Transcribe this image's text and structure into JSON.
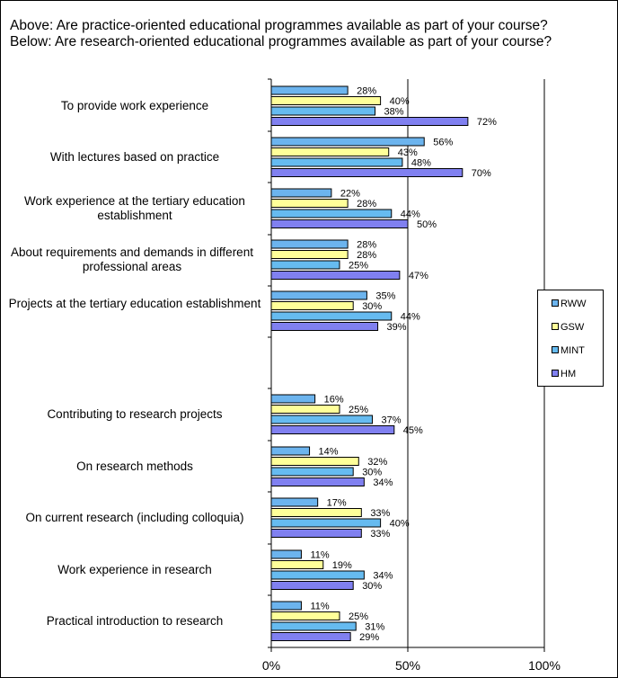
{
  "titles": {
    "above": "Above: Are practice-oriented educational programmes available as part of your course?",
    "below": "Below: Are research-oriented educational programmes available as part of your course?"
  },
  "legend": {
    "position": "right",
    "items": [
      {
        "name": "RWW",
        "color": "#6CB4EE"
      },
      {
        "name": "GSW",
        "color": "#FFFF99"
      },
      {
        "name": "MINT",
        "color": "#66BBF0"
      },
      {
        "name": "HM",
        "color": "#8080F0"
      }
    ]
  },
  "chart_data": {
    "type": "bar",
    "orientation": "horizontal",
    "xlim": [
      0,
      100
    ],
    "xticks": [
      "0%",
      "50%",
      "100%"
    ],
    "value_suffix": "%",
    "categories": [
      "To provide work experience",
      "With lectures based on practice",
      "Work experience at the tertiary education establishment",
      "About requirements and demands in different professional areas",
      "Projects at the tertiary education establishment",
      "Contributing to research projects",
      "On research methods",
      "On current research (including colloquia)",
      "Work experience in research",
      "Practical introduction to research"
    ],
    "series": [
      {
        "name": "RWW",
        "color": "#6CB4EE",
        "values": [
          28,
          56,
          22,
          28,
          35,
          16,
          14,
          17,
          11,
          11
        ]
      },
      {
        "name": "GSW",
        "color": "#FFFF99",
        "values": [
          40,
          43,
          28,
          28,
          30,
          25,
          32,
          33,
          19,
          25
        ]
      },
      {
        "name": "MINT",
        "color": "#66BBF0",
        "values": [
          38,
          48,
          44,
          25,
          44,
          37,
          30,
          40,
          34,
          31
        ]
      },
      {
        "name": "HM",
        "color": "#8080F0",
        "values": [
          72,
          70,
          50,
          47,
          39,
          45,
          34,
          33,
          30,
          29
        ]
      }
    ]
  }
}
